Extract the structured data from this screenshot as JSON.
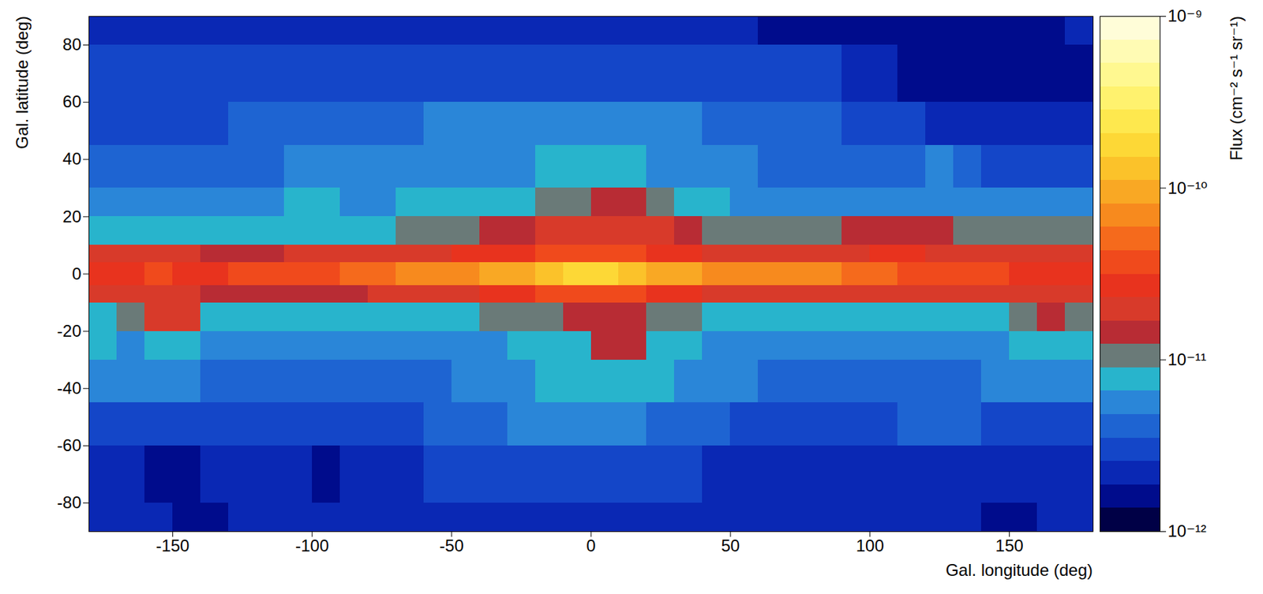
{
  "chart_data": {
    "type": "heatmap",
    "xlabel": "Gal. longitude (deg)",
    "ylabel": "Gal. latitude (deg)",
    "xlim": [
      -180,
      180
    ],
    "xticks": [
      -150,
      -100,
      -50,
      0,
      50,
      100,
      150
    ],
    "ylim": [
      -90,
      90
    ],
    "yticks": [
      -80,
      -60,
      -40,
      -20,
      0,
      20,
      40,
      60,
      80
    ],
    "x_edges": [
      -180,
      -170,
      -160,
      -150,
      -140,
      -130,
      -120,
      -110,
      -100,
      -90,
      -80,
      -70,
      -60,
      -50,
      -40,
      -30,
      -20,
      -10,
      0,
      10,
      20,
      30,
      40,
      50,
      60,
      70,
      80,
      90,
      100,
      110,
      120,
      130,
      140,
      150,
      160,
      170,
      180
    ],
    "y_edges": [
      -90,
      -80,
      -60,
      -45,
      -30,
      -20,
      -10,
      -4,
      4,
      10,
      20,
      30,
      45,
      60,
      80,
      90
    ],
    "values": [
      [
        2e-12,
        2e-12,
        2e-12,
        1.8e-12,
        1.8e-12,
        2e-12,
        2e-12,
        2e-12,
        2e-12,
        2e-12,
        2e-12,
        2e-12,
        2e-12,
        2e-12,
        2e-12,
        2e-12,
        2e-12,
        2e-12,
        2e-12,
        2e-12,
        2e-12,
        2e-12,
        2e-12,
        2e-12,
        2e-12,
        2e-12,
        2e-12,
        2e-12,
        2e-12,
        2e-12,
        2e-12,
        2e-12,
        1.8e-12,
        1.8e-12,
        2e-12,
        2e-12
      ],
      [
        2.5e-12,
        2.2e-12,
        1.6e-12,
        1.6e-12,
        2.2e-12,
        2.5e-12,
        2.5e-12,
        2e-12,
        1.7e-12,
        2e-12,
        2.5e-12,
        2.5e-12,
        2.6e-12,
        2.6e-12,
        2.6e-12,
        2.6e-12,
        2.6e-12,
        2.6e-12,
        2.6e-12,
        2.6e-12,
        2.6e-12,
        2.6e-12,
        2.5e-12,
        2.5e-12,
        2.5e-12,
        2.5e-12,
        2.5e-12,
        2.5e-12,
        2.5e-12,
        2.5e-12,
        2.5e-12,
        2.5e-12,
        2.5e-12,
        2.5e-12,
        2.5e-12,
        2.5e-12
      ],
      [
        3.2e-12,
        3.2e-12,
        3.2e-12,
        3.2e-12,
        3e-12,
        3e-12,
        3e-12,
        3e-12,
        3.2e-12,
        3.2e-12,
        3.5e-12,
        3.5e-12,
        3.8e-12,
        4.2e-12,
        4.6e-12,
        5e-12,
        5.2e-12,
        5.2e-12,
        5.2e-12,
        5e-12,
        4.6e-12,
        4.2e-12,
        3.8e-12,
        3.5e-12,
        3.5e-12,
        3.5e-12,
        3.5e-12,
        3.5e-12,
        3.5e-12,
        3.8e-12,
        3.8e-12,
        3.8e-12,
        3.5e-12,
        3.5e-12,
        3.5e-12,
        3.5e-12
      ],
      [
        5e-12,
        5.5e-12,
        5.5e-12,
        5e-12,
        4.5e-12,
        4.2e-12,
        4.2e-12,
        4.2e-12,
        4.5e-12,
        4.5e-12,
        4.5e-12,
        4.5e-12,
        4.8e-12,
        5e-12,
        5.5e-12,
        6.2e-12,
        7e-12,
        7e-12,
        8e-12,
        8.5e-12,
        7e-12,
        6.2e-12,
        5.5e-12,
        5e-12,
        4.8e-12,
        4.5e-12,
        4.5e-12,
        4.5e-12,
        4.5e-12,
        4.5e-12,
        4.8e-12,
        4.8e-12,
        5e-12,
        5e-12,
        5.5e-12,
        5.5e-12
      ],
      [
        7e-12,
        6.5e-12,
        8e-12,
        9e-12,
        6e-12,
        5.5e-12,
        5.5e-12,
        5.5e-12,
        5.5e-12,
        5.5e-12,
        5.5e-12,
        5.5e-12,
        6e-12,
        6e-12,
        6.5e-12,
        7e-12,
        7.5e-12,
        9e-12,
        1.4e-11,
        1.3e-11,
        8e-12,
        7e-12,
        6e-12,
        6e-12,
        6e-12,
        6e-12,
        6e-12,
        6e-12,
        6e-12,
        6e-12,
        6e-12,
        6e-12,
        6.5e-12,
        8e-12,
        9e-12,
        9e-12
      ],
      [
        9e-12,
        1.2e-11,
        2e-11,
        1.8e-11,
        9e-12,
        7.5e-12,
        7e-12,
        7e-12,
        7e-12,
        7e-12,
        7.5e-12,
        8e-12,
        8.5e-12,
        9e-12,
        9.5e-12,
        1e-11,
        1.1e-11,
        1.3e-11,
        1.6e-11,
        1.6e-11,
        1.1e-11,
        9.5e-12,
        9e-12,
        8.5e-12,
        8e-12,
        8e-12,
        8e-12,
        8e-12,
        8e-12,
        8e-12,
        8e-12,
        8e-12,
        9e-12,
        1.2e-11,
        1.4e-11,
        1.2e-11
      ],
      [
        1.7e-11,
        1.7e-11,
        2e-11,
        1.8e-11,
        1.5e-11,
        1.5e-11,
        1.5e-11,
        1.5e-11,
        1.6e-11,
        1.6e-11,
        1.8e-11,
        1.9e-11,
        2.1e-11,
        2.3e-11,
        2.5e-11,
        2.8e-11,
        3.2e-11,
        3.5e-11,
        3.5e-11,
        3.2e-11,
        2.8e-11,
        2.4e-11,
        2.2e-11,
        2e-11,
        2e-11,
        2e-11,
        1.8e-11,
        1.8e-11,
        1.8e-11,
        1.8e-11,
        1.7e-11,
        1.7e-11,
        1.8e-11,
        2e-11,
        2e-11,
        1.8e-11
      ],
      [
        3e-11,
        3e-11,
        3.2e-11,
        3e-11,
        3e-11,
        3.2e-11,
        3.5e-11,
        3.8e-11,
        4e-11,
        4.5e-11,
        5.5e-11,
        6e-11,
        7e-11,
        8e-11,
        9e-11,
        1e-10,
        1.3e-10,
        1.6e-10,
        1.7e-10,
        1.3e-10,
        1e-10,
        8.5e-11,
        7.5e-11,
        6.5e-11,
        7e-11,
        7.5e-11,
        7e-11,
        5.5e-11,
        4.5e-11,
        4e-11,
        3.8e-11,
        3.5e-11,
        3.2e-11,
        3e-11,
        3e-11,
        3e-11
      ],
      [
        1.8e-11,
        1.8e-11,
        1.8e-11,
        1.7e-11,
        1.6e-11,
        1.6e-11,
        1.6e-11,
        1.7e-11,
        1.7e-11,
        1.8e-11,
        2e-11,
        2.1e-11,
        2.3e-11,
        2.5e-11,
        2.7e-11,
        3e-11,
        3.5e-11,
        3.8e-11,
        3.8e-11,
        3.5e-11,
        3e-11,
        2.6e-11,
        2.3e-11,
        2.1e-11,
        2.1e-11,
        2.2e-11,
        2.2e-11,
        2.2e-11,
        2.4e-11,
        2.4e-11,
        2.2e-11,
        2e-11,
        1.9e-11,
        1.8e-11,
        1.8e-11,
        1.8e-11
      ],
      [
        9e-12,
        8e-12,
        7.5e-12,
        7.5e-12,
        7.5e-12,
        7.5e-12,
        8e-12,
        8e-12,
        8.5e-12,
        8.5e-12,
        9e-12,
        9.5e-12,
        1e-11,
        1.1e-11,
        1.3e-11,
        1.5e-11,
        1.7e-11,
        1.9e-11,
        2.2e-11,
        2e-11,
        1.7e-11,
        1.4e-11,
        1.1e-11,
        1e-11,
        1e-11,
        1e-11,
        1.1e-11,
        1.3e-11,
        1.4e-11,
        1.4e-11,
        1.3e-11,
        1.1e-11,
        1e-11,
        1e-11,
        1e-11,
        9.5e-12
      ],
      [
        5e-12,
        5e-12,
        5e-12,
        5e-12,
        5.5e-12,
        6e-12,
        6.5e-12,
        7e-12,
        7e-12,
        6.5e-12,
        6.5e-12,
        7e-12,
        7e-12,
        7.5e-12,
        8e-12,
        9e-12,
        1e-11,
        1.2e-11,
        1.4e-11,
        1.3e-11,
        1e-11,
        8e-12,
        7e-12,
        6.5e-12,
        6e-12,
        6e-12,
        6e-12,
        5.5e-12,
        5.5e-12,
        5.5e-12,
        5.5e-12,
        6.5e-12,
        5.5e-12,
        5e-12,
        5e-12,
        5e-12
      ],
      [
        3.8e-12,
        3.8e-12,
        4e-12,
        4e-12,
        4.2e-12,
        4.5e-12,
        4.8e-12,
        5e-12,
        5e-12,
        5e-12,
        5e-12,
        5.2e-12,
        5.5e-12,
        5.8e-12,
        6.2e-12,
        6.5e-12,
        7e-12,
        8.5e-12,
        9e-12,
        7.5e-12,
        6.5e-12,
        6e-12,
        5.5e-12,
        5e-12,
        4.8e-12,
        4.5e-12,
        4.2e-12,
        4e-12,
        3.8e-12,
        4e-12,
        6e-12,
        4e-12,
        3.5e-12,
        3.5e-12,
        3.5e-12,
        3.5e-12
      ],
      [
        3e-12,
        3e-12,
        3.2e-12,
        3.5e-12,
        3.5e-12,
        3.8e-12,
        3.8e-12,
        4e-12,
        4e-12,
        4.2e-12,
        4.5e-12,
        4.8e-12,
        5e-12,
        5e-12,
        5e-12,
        5e-12,
        5e-12,
        5e-12,
        5e-12,
        5e-12,
        5e-12,
        5e-12,
        4.8e-12,
        4.5e-12,
        4.2e-12,
        4e-12,
        3.8e-12,
        3.5e-12,
        3e-12,
        2.8e-12,
        2.5e-12,
        2.2e-12,
        2.2e-12,
        2.2e-12,
        2.2e-12,
        2.2e-12
      ],
      [
        2.8e-12,
        2.8e-12,
        2.8e-12,
        3e-12,
        3e-12,
        3e-12,
        3e-12,
        3.2e-12,
        3.2e-12,
        3.2e-12,
        3.5e-12,
        3.5e-12,
        3.5e-12,
        3.5e-12,
        3.5e-12,
        3.5e-12,
        3.5e-12,
        3.5e-12,
        3.5e-12,
        3.5e-12,
        3.5e-12,
        3.2e-12,
        3e-12,
        3e-12,
        3e-12,
        2.8e-12,
        2.6e-12,
        2.4e-12,
        2.2e-12,
        1.8e-12,
        1.6e-12,
        1.5e-12,
        1.5e-12,
        1.5e-12,
        1.6e-12,
        1.8e-12
      ],
      [
        2.2e-12,
        2.2e-12,
        2.2e-12,
        2.2e-12,
        2.2e-12,
        2.2e-12,
        2.2e-12,
        2.2e-12,
        2.2e-12,
        2.2e-12,
        2.2e-12,
        2.2e-12,
        2.2e-12,
        2.2e-12,
        2.2e-12,
        2.2e-12,
        2.2e-12,
        2.2e-12,
        2.2e-12,
        2.2e-12,
        2.2e-12,
        2.2e-12,
        2e-12,
        2e-12,
        1.8e-12,
        1.6e-12,
        1.5e-12,
        1.5e-12,
        1.5e-12,
        1.5e-12,
        1.6e-12,
        1.6e-12,
        1.6e-12,
        1.6e-12,
        1.8e-12,
        2e-12
      ]
    ],
    "colorbar": {
      "label": "Flux (cm⁻² s⁻¹ sr⁻¹)",
      "log": true,
      "range": [
        1e-12,
        1e-09
      ],
      "ticks": [
        {
          "value": 1e-12,
          "label": "10⁻¹²"
        },
        {
          "value": 1e-11,
          "label": "10⁻¹¹"
        },
        {
          "value": 1e-10,
          "label": "10⁻¹⁰"
        },
        {
          "value": 1e-09,
          "label": "10⁻⁹"
        }
      ]
    }
  }
}
